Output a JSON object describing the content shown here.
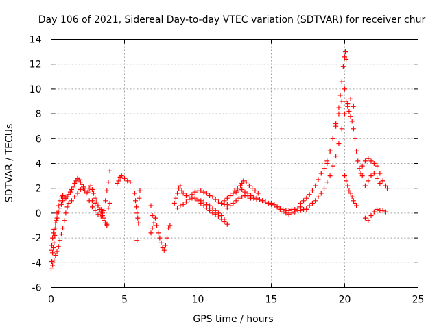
{
  "chart_data": {
    "type": "scatter",
    "title": "Day 106 of 2021, Sidereal Day-to-day VTEC variation (SDTVAR) for receiver chur",
    "xlabel": "GPS time / hours",
    "ylabel": "SDTVAR / TECUs",
    "xlim": [
      0,
      25
    ],
    "ylim": [
      -6,
      14
    ],
    "xticks": [
      0,
      5,
      10,
      15,
      20,
      25
    ],
    "yticks": [
      -6,
      -4,
      -2,
      0,
      2,
      4,
      6,
      8,
      10,
      12,
      14
    ],
    "grid": true,
    "marker": "+",
    "series_color": "#ff0000",
    "series": [
      {
        "name": "SDTVAR",
        "x": [
          0.0,
          0.05,
          0.1,
          0.15,
          0.2,
          0.25,
          0.3,
          0.35,
          0.4,
          0.5,
          0.6,
          0.7,
          0.8,
          0.9,
          1.0,
          1.1,
          1.2,
          1.3,
          1.4,
          1.5,
          1.6,
          1.7,
          1.8,
          1.9,
          2.0,
          2.1,
          2.2,
          2.3,
          2.4,
          2.5,
          2.6,
          2.7,
          2.8,
          2.9,
          3.0,
          3.1,
          3.2,
          3.3,
          3.4,
          3.5,
          3.6,
          3.7,
          3.8,
          3.9,
          4.0,
          0.0,
          0.05,
          0.1,
          0.15,
          0.2,
          0.3,
          0.4,
          0.5,
          0.6,
          0.7,
          0.8,
          0.9,
          1.0,
          1.1,
          0.1,
          0.2,
          0.3,
          0.4,
          0.5,
          0.6,
          0.7,
          0.8,
          0.9,
          1.0,
          1.1,
          1.2,
          1.4,
          1.6,
          1.8,
          2.0,
          2.2,
          2.4,
          2.6,
          2.8,
          3.0,
          3.2,
          3.4,
          3.6,
          3.8,
          2.8,
          3.0,
          3.2,
          3.4,
          3.5,
          3.6,
          3.7,
          3.8,
          3.9,
          4.0,
          4.5,
          4.6,
          4.7,
          4.8,
          5.0,
          5.2,
          5.4,
          5.7,
          5.75,
          5.8,
          5.85,
          5.9,
          5.95,
          6.0,
          6.05,
          5.85,
          6.8,
          6.9,
          7.0,
          7.1,
          7.2,
          7.3,
          7.4,
          7.5,
          7.6,
          7.7,
          7.8,
          7.9,
          8.0,
          8.1,
          6.8,
          6.9,
          7.0,
          8.4,
          8.5,
          8.6,
          8.7,
          8.8,
          8.9,
          9.0,
          9.2,
          9.4,
          9.6,
          9.8,
          10.0,
          10.2,
          10.4,
          10.6,
          10.8,
          11.0,
          11.2,
          11.4,
          11.6,
          11.8,
          12.0,
          8.6,
          8.8,
          9.0,
          9.2,
          9.4,
          9.6,
          9.8,
          10.0,
          10.2,
          10.4,
          10.6,
          10.8,
          11.0,
          11.2,
          11.4,
          11.6,
          11.8,
          10.0,
          10.2,
          10.4,
          10.6,
          10.8,
          11.0,
          11.2,
          11.4,
          11.6,
          11.8,
          12.0,
          11.6,
          11.8,
          12.0,
          12.2,
          12.4,
          12.6,
          12.8,
          13.0,
          13.2,
          13.4,
          13.6,
          13.8,
          14.0,
          14.2,
          14.4,
          14.6,
          14.8,
          15.0,
          15.2,
          15.4,
          15.6,
          15.8,
          16.0,
          16.2,
          16.4,
          16.6,
          16.8,
          17.0,
          12.0,
          12.2,
          12.4,
          12.6,
          12.8,
          13.0,
          13.2,
          13.4,
          13.6,
          13.8,
          14.0,
          14.2,
          14.4,
          14.6,
          14.8,
          15.0,
          15.2,
          15.4,
          15.6,
          15.8,
          16.0,
          16.2,
          16.4,
          16.6,
          16.8,
          17.0,
          17.2,
          17.4,
          12.5,
          12.7,
          12.9,
          13.0,
          13.1,
          13.3,
          13.5,
          13.7,
          13.9,
          14.1,
          17.0,
          17.2,
          17.4,
          17.6,
          17.8,
          18.0,
          18.2,
          18.4,
          18.6,
          18.8,
          19.0,
          19.2,
          19.4,
          19.6,
          19.7,
          19.8,
          19.9,
          20.0,
          20.05,
          20.1,
          17.4,
          17.6,
          17.8,
          18.0,
          18.2,
          18.4,
          18.6,
          18.8,
          19.0,
          19.2,
          19.4,
          19.6,
          19.8,
          20.0,
          20.2,
          20.4,
          20.6,
          18.8,
          19.0,
          19.2,
          19.4,
          19.6,
          19.8,
          20.0,
          20.1,
          20.2,
          20.3,
          20.4,
          20.5,
          20.6,
          20.7,
          20.8,
          20.9,
          21.0,
          21.1,
          21.2,
          20.0,
          20.1,
          20.2,
          20.3,
          20.4,
          20.5,
          20.6,
          20.7,
          20.8,
          21.2,
          21.4,
          21.6,
          21.8,
          22.0,
          22.2,
          22.4,
          22.6,
          22.8,
          21.4,
          21.6,
          21.8,
          22.0,
          22.2,
          22.4,
          22.6,
          22.8,
          22.9,
          21.4,
          21.6,
          21.8,
          22.0,
          22.2,
          22.4,
          22.6,
          22.8
        ],
        "y": [
          -4.5,
          -3.9,
          -3.2,
          -2.8,
          -2.4,
          -1.8,
          -1.2,
          -0.6,
          0.0,
          0.6,
          1.0,
          1.3,
          1.4,
          1.3,
          1.2,
          1.3,
          1.5,
          1.7,
          1.9,
          2.1,
          2.4,
          2.6,
          2.8,
          2.7,
          2.5,
          2.3,
          2.0,
          1.8,
          1.6,
          1.7,
          2.0,
          2.2,
          1.9,
          1.6,
          1.2,
          0.9,
          0.6,
          0.3,
          0.1,
          -0.2,
          0.2,
          1.0,
          1.8,
          2.5,
          3.4,
          -3.0,
          -2.6,
          -2.0,
          -1.6,
          -1.3,
          -0.8,
          -0.4,
          0.1,
          0.4,
          0.7,
          1.0,
          1.2,
          1.3,
          1.3,
          -4.2,
          -3.8,
          -3.4,
          -3.1,
          -2.7,
          -2.2,
          -1.7,
          -1.2,
          -0.6,
          0.0,
          0.5,
          0.8,
          1.0,
          1.3,
          1.6,
          1.9,
          2.1,
          1.6,
          1.0,
          0.5,
          0.2,
          -0.1,
          -0.3,
          -0.6,
          -0.9,
          1.0,
          0.8,
          0.6,
          0.3,
          0.0,
          -0.4,
          -0.8,
          -1.0,
          0.4,
          0.8,
          2.4,
          2.6,
          2.9,
          3.0,
          2.8,
          2.6,
          2.5,
          1.6,
          1.0,
          0.5,
          0.0,
          -0.4,
          -0.8,
          1.2,
          1.8,
          -2.2,
          -1.6,
          -1.2,
          -0.8,
          -0.4,
          -1.0,
          -1.6,
          -2.0,
          -2.4,
          -2.8,
          -3.0,
          -2.6,
          -2.0,
          -1.2,
          -1.0,
          0.6,
          -0.2,
          -0.8,
          0.8,
          1.2,
          1.6,
          2.0,
          2.2,
          1.8,
          1.6,
          1.4,
          1.3,
          1.5,
          1.7,
          1.8,
          1.8,
          1.7,
          1.6,
          1.4,
          1.3,
          1.1,
          0.9,
          0.8,
          0.7,
          0.7,
          0.4,
          0.6,
          0.7,
          0.9,
          1.1,
          1.2,
          1.2,
          1.1,
          1.0,
          0.9,
          0.7,
          0.6,
          0.4,
          0.2,
          0.0,
          -0.2,
          -0.5,
          1.0,
          0.8,
          0.6,
          0.4,
          0.2,
          0.0,
          -0.1,
          -0.3,
          -0.5,
          -0.7,
          -0.9,
          0.8,
          1.0,
          1.2,
          1.4,
          1.6,
          1.7,
          1.8,
          1.9,
          1.7,
          1.6,
          1.4,
          1.3,
          1.2,
          1.1,
          1.0,
          0.9,
          0.8,
          0.7,
          0.6,
          0.5,
          0.4,
          0.3,
          0.2,
          0.2,
          0.3,
          0.3,
          0.4,
          0.5,
          0.4,
          0.6,
          0.8,
          1.0,
          1.2,
          1.3,
          1.4,
          1.3,
          1.2,
          1.2,
          1.1,
          1.1,
          1.0,
          0.9,
          0.8,
          0.8,
          0.7,
          0.5,
          0.3,
          0.1,
          0.0,
          -0.1,
          0.0,
          0.1,
          0.2,
          0.2,
          0.3,
          0.3,
          1.8,
          2.0,
          2.2,
          2.4,
          2.6,
          2.5,
          2.2,
          2.0,
          1.8,
          1.6,
          0.8,
          1.0,
          1.2,
          1.5,
          1.8,
          2.2,
          2.7,
          3.2,
          3.6,
          4.2,
          5.0,
          6.0,
          7.2,
          8.5,
          9.5,
          10.6,
          11.8,
          12.6,
          13.0,
          12.4,
          0.4,
          0.6,
          0.8,
          1.0,
          1.3,
          1.6,
          2.0,
          2.5,
          3.0,
          3.8,
          4.6,
          5.6,
          6.8,
          8.0,
          8.8,
          9.2,
          8.6,
          4.0,
          5.0,
          6.0,
          7.0,
          8.0,
          9.0,
          10.0,
          9.0,
          8.6,
          8.2,
          7.8,
          7.4,
          6.8,
          6.0,
          5.0,
          4.2,
          3.6,
          3.2,
          3.0,
          3.0,
          2.6,
          2.2,
          1.8,
          1.6,
          1.3,
          1.0,
          0.8,
          0.6,
          3.8,
          4.2,
          4.4,
          4.2,
          4.0,
          3.8,
          3.2,
          2.6,
          2.2,
          2.2,
          2.6,
          3.0,
          3.2,
          2.8,
          2.4,
          2.6,
          2.2,
          2.0,
          -0.4,
          -0.6,
          -0.2,
          0.1,
          0.3,
          0.2,
          0.2,
          0.1
        ]
      }
    ]
  }
}
